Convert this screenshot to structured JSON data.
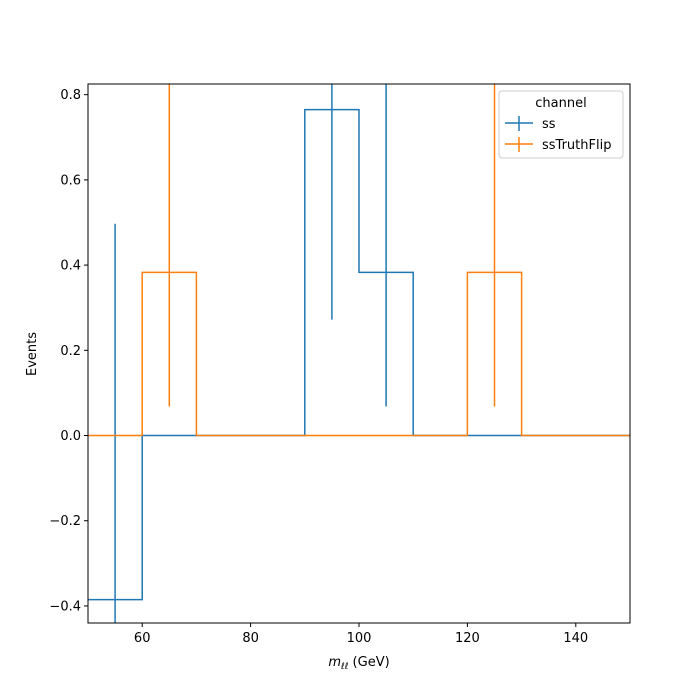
{
  "chart_data": {
    "type": "step-histogram",
    "xlabel": {
      "symbol": "m",
      "subscript": "ℓℓ",
      "unit": " (GeV)"
    },
    "ylabel": "Events",
    "xlim": [
      50,
      150
    ],
    "ylim": [
      -0.44,
      0.825
    ],
    "xticks": [
      60,
      80,
      100,
      120,
      140
    ],
    "yticks": [
      -0.4,
      -0.2,
      0.0,
      0.2,
      0.4,
      0.6,
      0.8
    ],
    "grid": false,
    "legend": {
      "title": "channel",
      "position": "top-right"
    },
    "series": [
      {
        "name": "ss",
        "color": "#1f77b4",
        "bins": [
          {
            "x0": 50,
            "x1": 60,
            "value": -0.385,
            "err_low": -0.44,
            "err_high": 0.497
          },
          {
            "x0": 60,
            "x1": 90,
            "value": 0.0
          },
          {
            "x0": 90,
            "x1": 100,
            "value": 0.765,
            "err_low": 0.272,
            "err_high": 0.825
          },
          {
            "x0": 100,
            "x1": 110,
            "value": 0.383,
            "err_low": 0.068,
            "err_high": 0.825
          },
          {
            "x0": 110,
            "x1": 150,
            "value": 0.0
          }
        ]
      },
      {
        "name": "ssTruthFlip",
        "color": "#ff7f0e",
        "bins": [
          {
            "x0": 50,
            "x1": 60,
            "value": 0.0
          },
          {
            "x0": 60,
            "x1": 70,
            "value": 0.383,
            "err_low": 0.068,
            "err_high": 0.825
          },
          {
            "x0": 70,
            "x1": 120,
            "value": 0.0
          },
          {
            "x0": 120,
            "x1": 130,
            "value": 0.383,
            "err_low": 0.068,
            "err_high": 0.825
          },
          {
            "x0": 130,
            "x1": 150,
            "value": 0.0
          }
        ]
      }
    ]
  }
}
